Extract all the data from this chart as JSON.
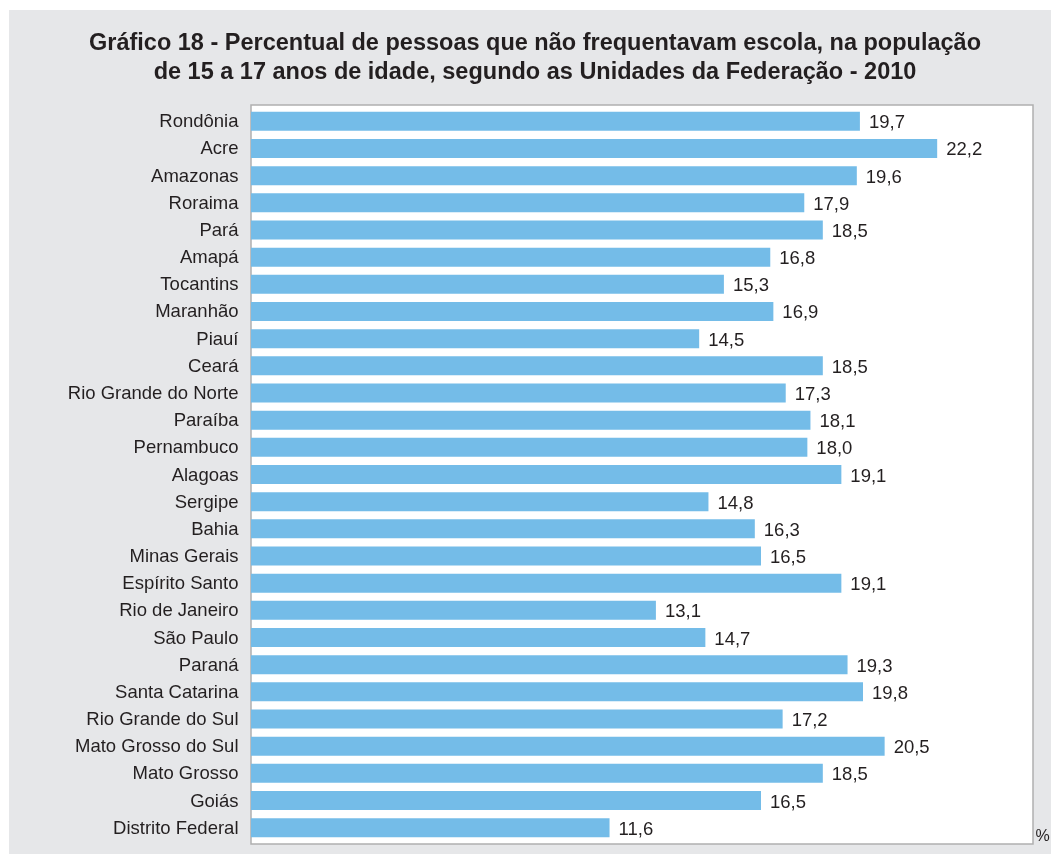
{
  "chart_data": {
    "type": "bar",
    "orientation": "horizontal",
    "title": "Gráfico 18 - Percentual de pessoas que não frequentavam escola, na população\nde 15 a 17 anos de idade, segundo as Unidades da Federação - 2010",
    "xlabel": "%",
    "categories": [
      "Rondônia",
      "Acre",
      "Amazonas",
      "Roraima",
      "Pará",
      "Amapá",
      "Tocantins",
      "Maranhão",
      "Piauí",
      "Ceará",
      "Rio Grande do Norte",
      "Paraíba",
      "Pernambuco",
      "Alagoas",
      "Sergipe",
      "Bahia",
      "Minas Gerais",
      "Espírito Santo",
      "Rio de Janeiro",
      "São Paulo",
      "Paraná",
      "Santa Catarina",
      "Rio Grande do Sul",
      "Mato Grosso do Sul",
      "Mato Grosso",
      "Goiás",
      "Distrito Federal"
    ],
    "values": [
      19.7,
      22.2,
      19.6,
      17.9,
      18.5,
      16.8,
      15.3,
      16.9,
      14.5,
      18.5,
      17.3,
      18.1,
      18.0,
      19.1,
      14.8,
      16.3,
      16.5,
      19.1,
      13.1,
      14.7,
      19.3,
      19.8,
      17.2,
      20.5,
      18.5,
      16.5,
      11.6
    ],
    "value_labels": [
      "19,7",
      "22,2",
      "19,6",
      "17,9",
      "18,5",
      "16,8",
      "15,3",
      "16,9",
      "14,5",
      "18,5",
      "17,3",
      "18,1",
      "18,0",
      "19,1",
      "14,8",
      "16,3",
      "16,5",
      "19,1",
      "13,1",
      "14,7",
      "19,3",
      "19,8",
      "17,2",
      "20,5",
      "18,5",
      "16,5",
      "11,6"
    ],
    "color": "#74bce8",
    "xlim": [
      0,
      25.3
    ],
    "tick_labels": "y"
  }
}
